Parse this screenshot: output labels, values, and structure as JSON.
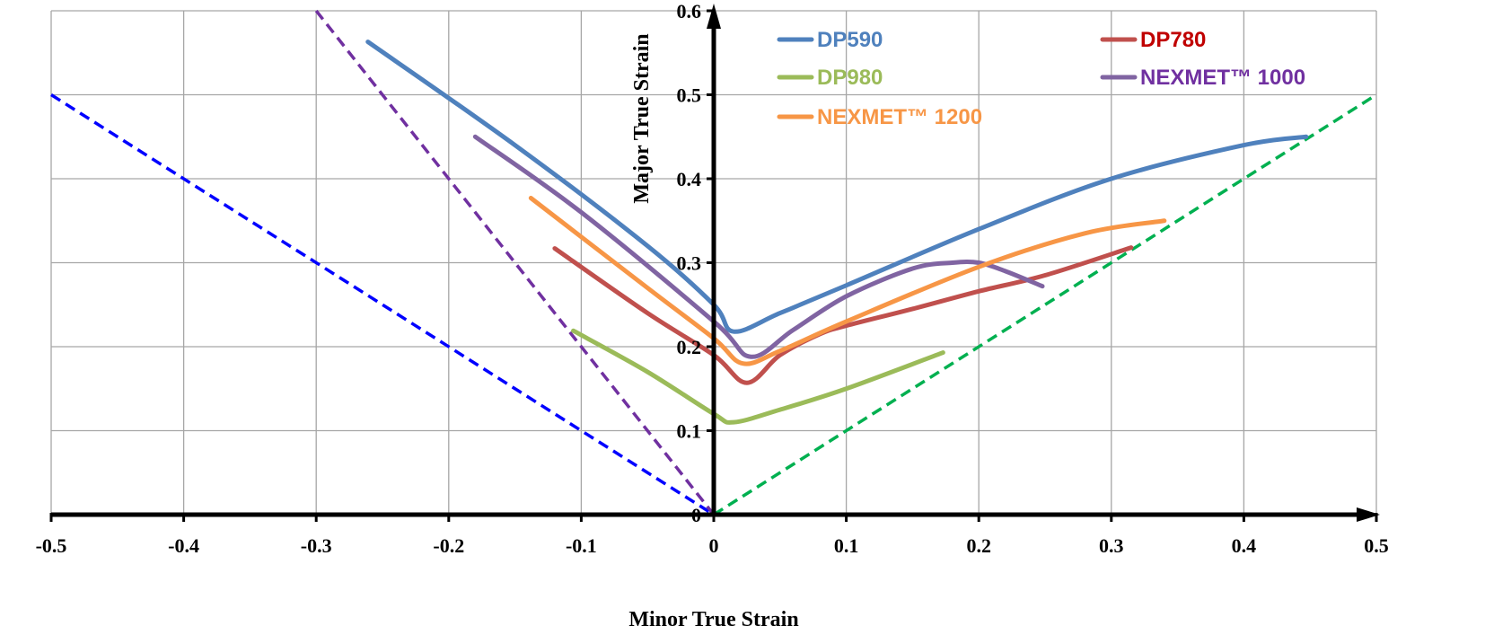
{
  "chart_data": {
    "type": "line",
    "xlabel": "Minor True Strain",
    "ylabel": "Major True Strain",
    "xlim": [
      -0.5,
      0.5
    ],
    "ylim": [
      0,
      0.6
    ],
    "xticks": [
      "-0.5",
      "-0.4",
      "-0.3",
      "-0.2",
      "-0.1",
      "0",
      "0.1",
      "0.2",
      "0.3",
      "0.4",
      "0.5"
    ],
    "yticks": [
      "0",
      "0.1",
      "0.2",
      "0.3",
      "0.4",
      "0.5",
      "0.6"
    ],
    "grid": true,
    "legend_position": "top",
    "series": [
      {
        "name": "DP590",
        "color": "#4F81BD",
        "points": [
          [
            -0.261,
            0.563
          ],
          [
            -0.15,
            0.44
          ],
          [
            -0.05,
            0.32
          ],
          [
            0,
            0.25
          ],
          [
            0.015,
            0.218
          ],
          [
            0.05,
            0.24
          ],
          [
            0.1,
            0.273
          ],
          [
            0.2,
            0.34
          ],
          [
            0.3,
            0.4
          ],
          [
            0.4,
            0.44
          ],
          [
            0.447,
            0.45
          ]
        ]
      },
      {
        "name": "DP780",
        "color": "#C0504D",
        "points": [
          [
            -0.12,
            0.317
          ],
          [
            -0.05,
            0.24
          ],
          [
            0,
            0.19
          ],
          [
            0.025,
            0.157
          ],
          [
            0.05,
            0.19
          ],
          [
            0.08,
            0.215
          ],
          [
            0.1,
            0.225
          ],
          [
            0.15,
            0.245
          ],
          [
            0.2,
            0.266
          ],
          [
            0.25,
            0.285
          ],
          [
            0.315,
            0.318
          ]
        ]
      },
      {
        "name": "DP980",
        "color": "#9BBB59",
        "points": [
          [
            -0.106,
            0.219
          ],
          [
            -0.05,
            0.17
          ],
          [
            0,
            0.12
          ],
          [
            0.015,
            0.11
          ],
          [
            0.05,
            0.125
          ],
          [
            0.1,
            0.15
          ],
          [
            0.173,
            0.193
          ]
        ]
      },
      {
        "name": "NEXMET™ 1000",
        "color": "#8064A2",
        "points": [
          [
            -0.18,
            0.45
          ],
          [
            -0.1,
            0.36
          ],
          [
            0,
            0.23
          ],
          [
            0.028,
            0.188
          ],
          [
            0.06,
            0.22
          ],
          [
            0.1,
            0.26
          ],
          [
            0.15,
            0.293
          ],
          [
            0.18,
            0.3
          ],
          [
            0.2,
            0.3
          ],
          [
            0.22,
            0.29
          ],
          [
            0.248,
            0.272
          ]
        ]
      },
      {
        "name": "NEXMET™ 1200",
        "color": "#F79646",
        "points": [
          [
            -0.138,
            0.377
          ],
          [
            -0.05,
            0.27
          ],
          [
            0,
            0.21
          ],
          [
            0.022,
            0.18
          ],
          [
            0.05,
            0.195
          ],
          [
            0.1,
            0.23
          ],
          [
            0.2,
            0.295
          ],
          [
            0.28,
            0.335
          ],
          [
            0.34,
            0.35
          ]
        ]
      }
    ],
    "reference_lines": [
      {
        "color": "#0000FF",
        "points": [
          [
            -0.5,
            0.5
          ],
          [
            0,
            0
          ]
        ]
      },
      {
        "color": "#7030A0",
        "points": [
          [
            -0.3,
            0.6
          ],
          [
            0,
            0
          ]
        ]
      },
      {
        "color": "#00B050",
        "points": [
          [
            0,
            0
          ],
          [
            0.5,
            0.5
          ]
        ]
      }
    ],
    "legend_text_colors": [
      "#4F81BD",
      "#C00000",
      "#9BBB59",
      "#7030A0",
      "#F79646"
    ]
  }
}
